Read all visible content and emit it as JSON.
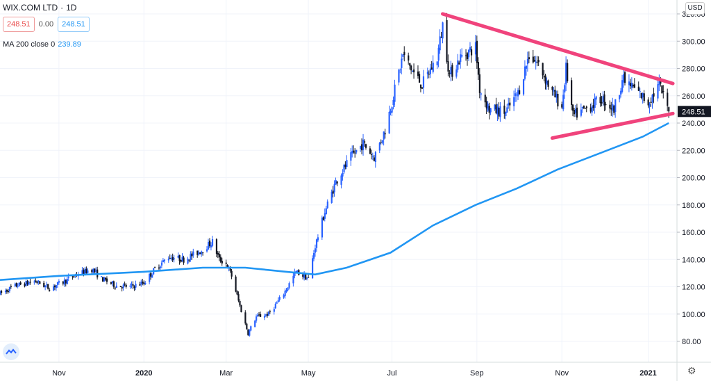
{
  "header": {
    "symbol": "WIX.COM LTD",
    "interval": "1D",
    "bid": "248.51",
    "spread": "0.00",
    "ask": "248.51",
    "ma_label": "MA 200 close 0",
    "ma_value": "239.89",
    "currency": "USD"
  },
  "colors": {
    "up": "#2962ff",
    "down": "#131722",
    "ma": "#2196f3",
    "trendline": "#f0437c",
    "grid": "#f0f3fa",
    "last_price_bg": "#131722"
  },
  "icons": {
    "logo": "tradingview-logo-icon",
    "settings": "gear-icon"
  },
  "chart_data": {
    "type": "candlestick",
    "ylim": [
      65,
      330
    ],
    "yticks": [
      80,
      100,
      120,
      140,
      160,
      180,
      200,
      220,
      240,
      260,
      280,
      300,
      320
    ],
    "ytick_labels": [
      "80.00",
      "100.00",
      "120.00",
      "140.00",
      "160.00",
      "180.00",
      "200.00",
      "220.00",
      "240.00",
      "260.00",
      "280.00",
      "300.00",
      "320.00"
    ],
    "xlim": [
      "2019-09-19",
      "2021-01-25"
    ],
    "xticks": [
      {
        "date": "2019-11-01",
        "label": "Nov"
      },
      {
        "date": "2020-01-02",
        "label": "2020"
      },
      {
        "date": "2020-03-02",
        "label": "Mar"
      },
      {
        "date": "2020-05-01",
        "label": "May"
      },
      {
        "date": "2020-07-01",
        "label": "Jul"
      },
      {
        "date": "2020-09-01",
        "label": "Sep"
      },
      {
        "date": "2020-11-02",
        "label": "Nov"
      },
      {
        "date": "2021-01-04",
        "label": "2021"
      }
    ],
    "last_price": 248.51,
    "last_price_label": "248.51",
    "price_path": [
      [
        "2019-09-19",
        115
      ],
      [
        "2019-10-01",
        121
      ],
      [
        "2019-10-15",
        124
      ],
      [
        "2019-10-25",
        119
      ],
      [
        "2019-11-05",
        124
      ],
      [
        "2019-11-14",
        129
      ],
      [
        "2019-11-25",
        133
      ],
      [
        "2019-12-02",
        126
      ],
      [
        "2019-12-12",
        121
      ],
      [
        "2019-12-23",
        120
      ],
      [
        "2020-01-02",
        123
      ],
      [
        "2020-01-10",
        133
      ],
      [
        "2020-01-20",
        142
      ],
      [
        "2020-01-31",
        140
      ],
      [
        "2020-02-12",
        146
      ],
      [
        "2020-02-21",
        153
      ],
      [
        "2020-02-26",
        140
      ],
      [
        "2020-03-02",
        137
      ],
      [
        "2020-03-06",
        128
      ],
      [
        "2020-03-12",
        106
      ],
      [
        "2020-03-18",
        86
      ],
      [
        "2020-03-24",
        98
      ],
      [
        "2020-04-02",
        100
      ],
      [
        "2020-04-13",
        115
      ],
      [
        "2020-04-22",
        131
      ],
      [
        "2020-05-01",
        126
      ],
      [
        "2020-05-06",
        150
      ],
      [
        "2020-05-13",
        175
      ],
      [
        "2020-05-21",
        197
      ],
      [
        "2020-06-01",
        215
      ],
      [
        "2020-06-10",
        225
      ],
      [
        "2020-06-18",
        215
      ],
      [
        "2020-06-26",
        235
      ],
      [
        "2020-07-02",
        260
      ],
      [
        "2020-07-09",
        290
      ],
      [
        "2020-07-16",
        278
      ],
      [
        "2020-07-23",
        268
      ],
      [
        "2020-08-03",
        288
      ],
      [
        "2020-08-07",
        312
      ],
      [
        "2020-08-12",
        275
      ],
      [
        "2020-08-20",
        288
      ],
      [
        "2020-08-31",
        296
      ],
      [
        "2020-09-03",
        265
      ],
      [
        "2020-09-10",
        250
      ],
      [
        "2020-09-22",
        248
      ],
      [
        "2020-10-01",
        262
      ],
      [
        "2020-10-09",
        290
      ],
      [
        "2020-10-16",
        283
      ],
      [
        "2020-10-26",
        262
      ],
      [
        "2020-11-02",
        252
      ],
      [
        "2020-11-05",
        280
      ],
      [
        "2020-11-10",
        245
      ],
      [
        "2020-11-19",
        250
      ],
      [
        "2020-12-01",
        258
      ],
      [
        "2020-12-10",
        250
      ],
      [
        "2020-12-16",
        272
      ],
      [
        "2020-12-24",
        266
      ],
      [
        "2021-01-04",
        255
      ],
      [
        "2021-01-12",
        268
      ],
      [
        "2021-01-19",
        248.51
      ]
    ],
    "ma200": [
      [
        "2019-09-19",
        125
      ],
      [
        "2019-11-01",
        128
      ],
      [
        "2020-01-02",
        131
      ],
      [
        "2020-02-14",
        134
      ],
      [
        "2020-03-16",
        134
      ],
      [
        "2020-04-15",
        131
      ],
      [
        "2020-05-06",
        129
      ],
      [
        "2020-05-29",
        134
      ],
      [
        "2020-06-30",
        145
      ],
      [
        "2020-07-31",
        165
      ],
      [
        "2020-08-31",
        180
      ],
      [
        "2020-09-30",
        192
      ],
      [
        "2020-10-30",
        206
      ],
      [
        "2020-11-30",
        218
      ],
      [
        "2020-12-31",
        230
      ],
      [
        "2021-01-19",
        240
      ]
    ],
    "trendlines": [
      {
        "from": [
          "2020-08-07",
          320
        ],
        "to": [
          "2021-01-22",
          269
        ]
      },
      {
        "from": [
          "2020-10-26",
          229
        ],
        "to": [
          "2021-01-22",
          247
        ]
      }
    ]
  }
}
